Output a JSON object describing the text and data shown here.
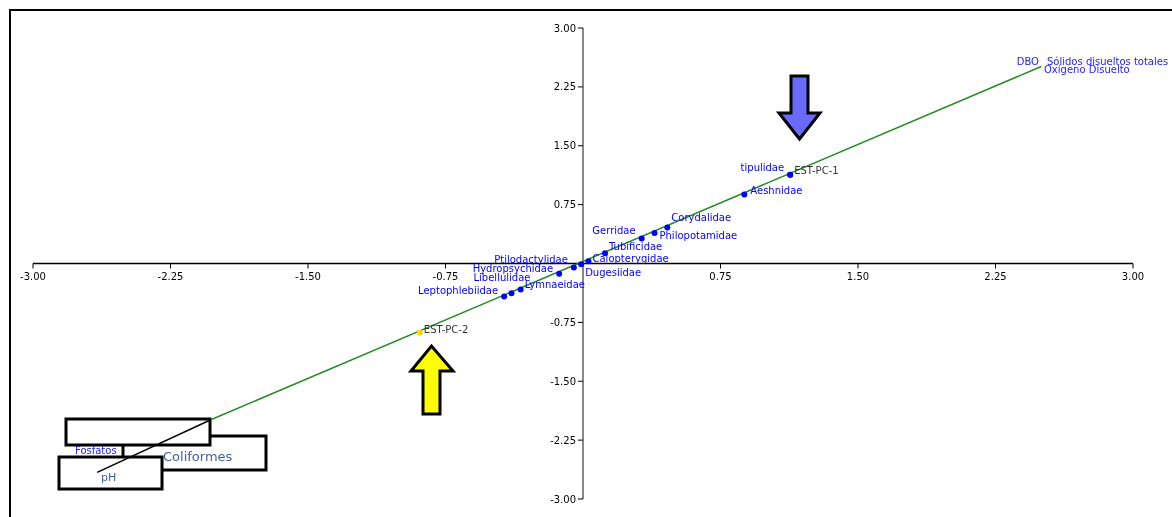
{
  "chart_data": {
    "type": "scatter",
    "marker": "circle",
    "xlim": [
      -3,
      3
    ],
    "ylim": [
      -3,
      3
    ],
    "xticks": [
      {
        "value": -3,
        "label": "-3.00"
      },
      {
        "value": -2.25,
        "label": "-2.25"
      },
      {
        "value": -1.5,
        "label": "-1.50"
      },
      {
        "value": -0.75,
        "label": "-0.75"
      },
      {
        "value": 0.75,
        "label": "0.75"
      },
      {
        "value": 1.5,
        "label": "1.50"
      },
      {
        "value": 2.25,
        "label": "2.25"
      },
      {
        "value": 3,
        "label": "3.00"
      }
    ],
    "yticks": [
      {
        "value": -3,
        "label": "-3.00"
      },
      {
        "value": -2.25,
        "label": "-2.25"
      },
      {
        "value": -1.5,
        "label": "-1.50"
      },
      {
        "value": -0.75,
        "label": "-0.75"
      },
      {
        "value": 0.75,
        "label": "0.75"
      },
      {
        "value": 1.5,
        "label": "1.50"
      },
      {
        "value": 2.25,
        "label": "2.25"
      },
      {
        "value": 3,
        "label": "3.00"
      }
    ],
    "series": [
      {
        "type": "line",
        "marker": "none",
        "color": "#228b22",
        "x": [
          -2.03,
          2.5
        ],
        "values": [
          -1.99,
          2.51
        ]
      },
      {
        "type": "line",
        "marker": "none",
        "color": "#000000",
        "x": [
          -2.65,
          -2.03
        ],
        "values": [
          -2.66,
          -1.99
        ]
      },
      {
        "color": "#0000ff",
        "x": [
          1.13,
          0.88,
          0.46,
          0.39,
          0.32,
          0.12,
          0.03,
          -0.01,
          -0.05,
          -0.13,
          -0.34,
          -0.39,
          -0.43
        ],
        "values": [
          1.13,
          0.88,
          0.46,
          0.39,
          0.32,
          0.13,
          0.03,
          -0.01,
          -0.05,
          -0.13,
          -0.33,
          -0.38,
          -0.42
        ],
        "value_labels": [
          "tipulidae",
          "Aeshnidae",
          "Corydalidae",
          "Philopotamidae",
          "Gerridae",
          "Tubificidae",
          "Calopterygidae",
          "Dugesiidae",
          "Ptilodactylidae",
          "Hydropsychidae",
          "Lymnaeidae",
          "Libellulidae",
          "Leptophlebiidae"
        ]
      },
      {
        "color": "#333333",
        "colors": [
          "#0000ff",
          "#ffd700"
        ],
        "x": [
          1.13,
          -0.89
        ],
        "values": [
          1.13,
          -0.88
        ],
        "value_labels": [
          "EST-PC-1",
          "EST-PC-2"
        ]
      }
    ],
    "annotations": [
      "DBO",
      "Sólidos disueltos totales",
      "Oxígeno Disuelto",
      "Fosfatos",
      "Coliformes",
      "pH"
    ]
  }
}
